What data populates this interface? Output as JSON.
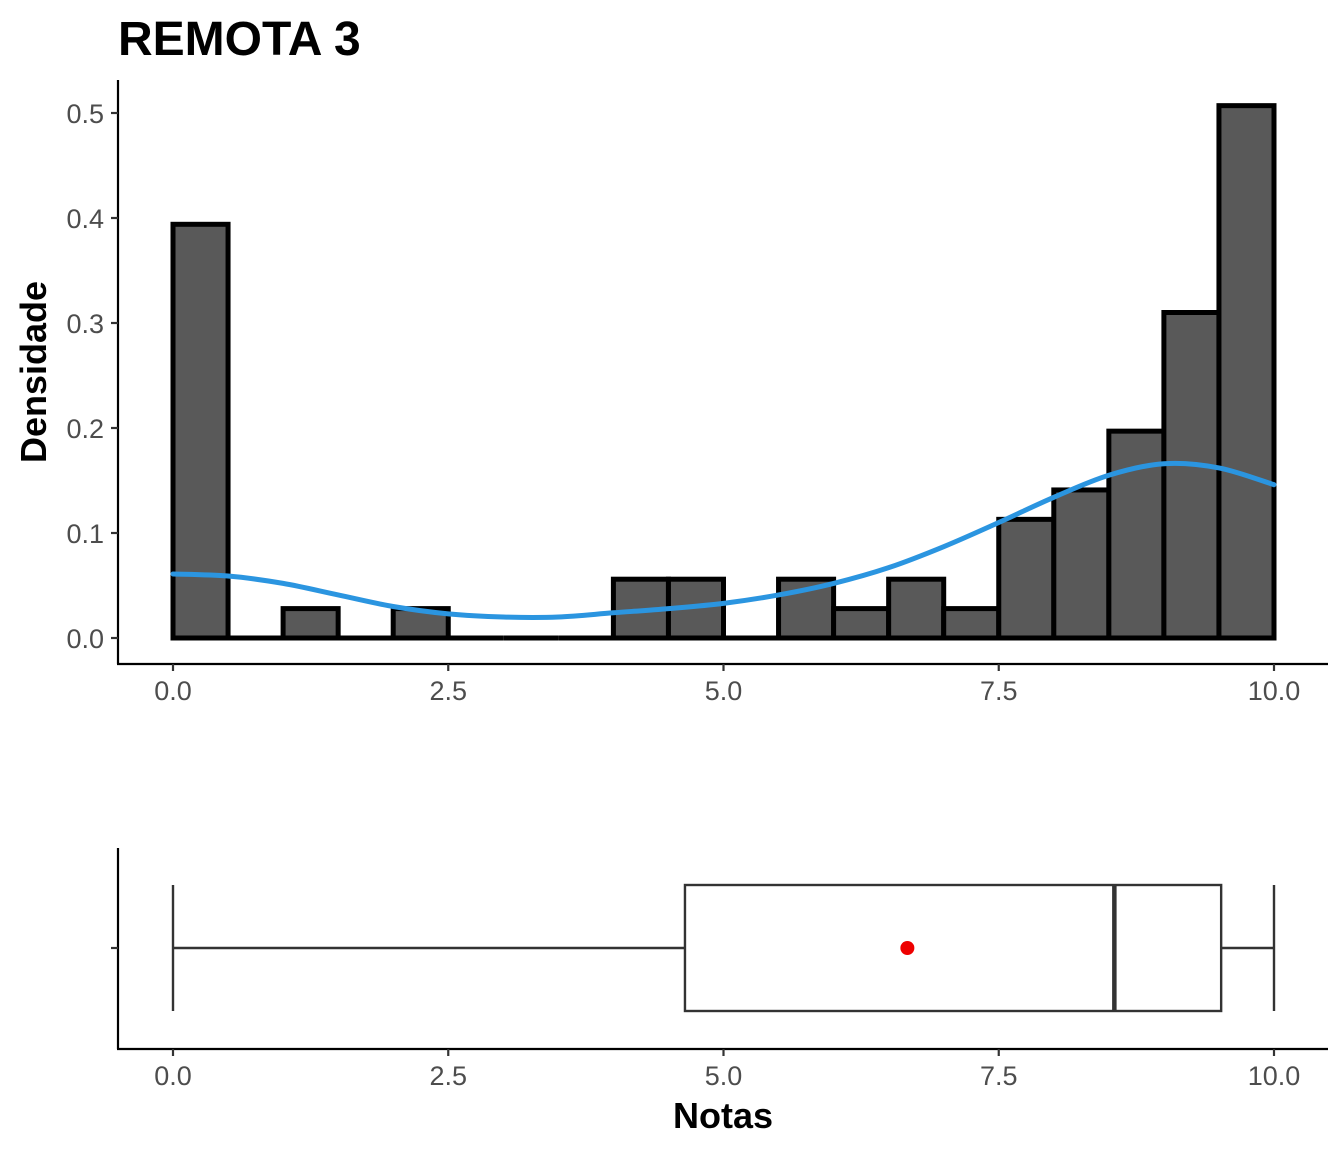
{
  "title": "REMOTA 3",
  "chart_data": [
    {
      "type": "histogram",
      "ylabel": "Densidade",
      "xlim": [
        -0.5,
        10.5
      ],
      "ylim": [
        0,
        0.52
      ],
      "x_ticks": [
        "0.0",
        "2.5",
        "5.0",
        "7.5",
        "10.0"
      ],
      "y_ticks": [
        "0.0",
        "0.1",
        "0.2",
        "0.3",
        "0.4",
        "0.5"
      ],
      "bin_width": 0.5,
      "bins": [
        {
          "x0": 0.0,
          "x1": 0.5,
          "density": 0.394
        },
        {
          "x0": 0.5,
          "x1": 1.0,
          "density": 0.0
        },
        {
          "x0": 1.0,
          "x1": 1.5,
          "density": 0.028
        },
        {
          "x0": 1.5,
          "x1": 2.0,
          "density": 0.0
        },
        {
          "x0": 2.0,
          "x1": 2.5,
          "density": 0.028
        },
        {
          "x0": 2.5,
          "x1": 3.0,
          "density": 0.0
        },
        {
          "x0": 3.0,
          "x1": 3.5,
          "density": 0.0
        },
        {
          "x0": 3.5,
          "x1": 4.0,
          "density": 0.0
        },
        {
          "x0": 4.0,
          "x1": 4.5,
          "density": 0.056
        },
        {
          "x0": 4.5,
          "x1": 5.0,
          "density": 0.056
        },
        {
          "x0": 5.0,
          "x1": 5.5,
          "density": 0.0
        },
        {
          "x0": 5.5,
          "x1": 6.0,
          "density": 0.056
        },
        {
          "x0": 6.0,
          "x1": 6.5,
          "density": 0.028
        },
        {
          "x0": 6.5,
          "x1": 7.0,
          "density": 0.056
        },
        {
          "x0": 7.0,
          "x1": 7.5,
          "density": 0.028
        },
        {
          "x0": 7.5,
          "x1": 8.0,
          "density": 0.113
        },
        {
          "x0": 8.0,
          "x1": 8.5,
          "density": 0.141
        },
        {
          "x0": 8.5,
          "x1": 9.0,
          "density": 0.197
        },
        {
          "x0": 9.0,
          "x1": 9.5,
          "density": 0.31
        },
        {
          "x0": 9.5,
          "x1": 10.0,
          "density": 0.507
        }
      ],
      "density_curve": {
        "color": "#2b95e0",
        "x": [
          0.0,
          0.5,
          1.0,
          1.5,
          2.0,
          2.5,
          3.0,
          3.5,
          4.0,
          4.5,
          5.0,
          5.5,
          6.0,
          6.5,
          7.0,
          7.5,
          8.0,
          8.5,
          9.0,
          9.5,
          10.0
        ],
        "y": [
          0.061,
          0.059,
          0.052,
          0.041,
          0.03,
          0.023,
          0.02,
          0.02,
          0.024,
          0.028,
          0.033,
          0.041,
          0.052,
          0.067,
          0.087,
          0.11,
          0.134,
          0.155,
          0.166,
          0.162,
          0.146
        ]
      }
    },
    {
      "type": "boxplot",
      "xlabel": "Notas",
      "xlim": [
        -0.5,
        10.5
      ],
      "x_ticks": [
        "0.0",
        "2.5",
        "5.0",
        "7.5",
        "10.0"
      ],
      "whisker_low": 0.0,
      "q1": 4.65,
      "median": 8.55,
      "q3": 9.52,
      "whisker_high": 10.0,
      "mean": 6.67,
      "mean_color": "#ee0000"
    }
  ]
}
